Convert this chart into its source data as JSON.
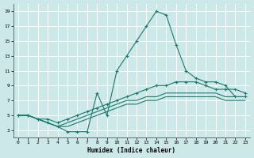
{
  "xlabel": "Humidex (Indice chaleur)",
  "bg_color": "#cce8e8",
  "grid_color": "#ffffff",
  "line_color": "#1a7a6e",
  "xlim": [
    -0.5,
    23.5
  ],
  "ylim": [
    2.0,
    20.0
  ],
  "xticks": [
    0,
    1,
    2,
    3,
    4,
    5,
    6,
    7,
    8,
    9,
    10,
    11,
    12,
    13,
    14,
    15,
    16,
    17,
    18,
    19,
    20,
    21,
    22,
    23
  ],
  "yticks": [
    3,
    5,
    7,
    9,
    11,
    13,
    15,
    17,
    19
  ],
  "series": [
    {
      "x": [
        0,
        1,
        2,
        3,
        4,
        5,
        6,
        7,
        8,
        9,
        10,
        11,
        12,
        13,
        14,
        15,
        16,
        17,
        18,
        19,
        20,
        21,
        22,
        23
      ],
      "y": [
        5.0,
        5.0,
        4.5,
        4.0,
        3.5,
        2.8,
        2.8,
        2.8,
        8.0,
        5.0,
        11.0,
        13.0,
        15.0,
        17.0,
        19.0,
        18.5,
        14.5,
        11.0,
        10.0,
        9.5,
        9.5,
        9.0,
        7.5,
        7.5
      ],
      "marker": "+"
    },
    {
      "x": [
        0,
        1,
        2,
        3,
        4,
        5,
        6,
        7,
        8,
        9,
        10,
        11,
        12,
        13,
        14,
        15,
        16,
        17,
        18,
        19,
        20,
        21,
        22,
        23
      ],
      "y": [
        5.0,
        5.0,
        4.5,
        4.5,
        4.0,
        4.5,
        5.0,
        5.5,
        6.0,
        6.5,
        7.0,
        7.5,
        8.0,
        8.5,
        9.0,
        9.0,
        9.5,
        9.5,
        9.5,
        9.0,
        8.5,
        8.5,
        8.5,
        8.0
      ],
      "marker": "+"
    },
    {
      "x": [
        0,
        1,
        2,
        3,
        4,
        5,
        6,
        7,
        8,
        9,
        10,
        11,
        12,
        13,
        14,
        15,
        16,
        17,
        18,
        19,
        20,
        21,
        22,
        23
      ],
      "y": [
        5.0,
        5.0,
        4.5,
        4.0,
        3.5,
        4.0,
        4.5,
        5.0,
        5.5,
        6.0,
        6.5,
        7.0,
        7.0,
        7.5,
        7.5,
        8.0,
        8.0,
        8.0,
        8.0,
        8.0,
        8.0,
        7.5,
        7.5,
        7.5
      ],
      "marker": null
    },
    {
      "x": [
        0,
        1,
        2,
        3,
        4,
        5,
        6,
        7,
        8,
        9,
        10,
        11,
        12,
        13,
        14,
        15,
        16,
        17,
        18,
        19,
        20,
        21,
        22,
        23
      ],
      "y": [
        5.0,
        5.0,
        4.5,
        4.0,
        3.5,
        3.5,
        4.0,
        4.5,
        5.0,
        5.5,
        6.0,
        6.5,
        6.5,
        7.0,
        7.0,
        7.5,
        7.5,
        7.5,
        7.5,
        7.5,
        7.5,
        7.0,
        7.0,
        7.0
      ],
      "marker": null
    }
  ]
}
